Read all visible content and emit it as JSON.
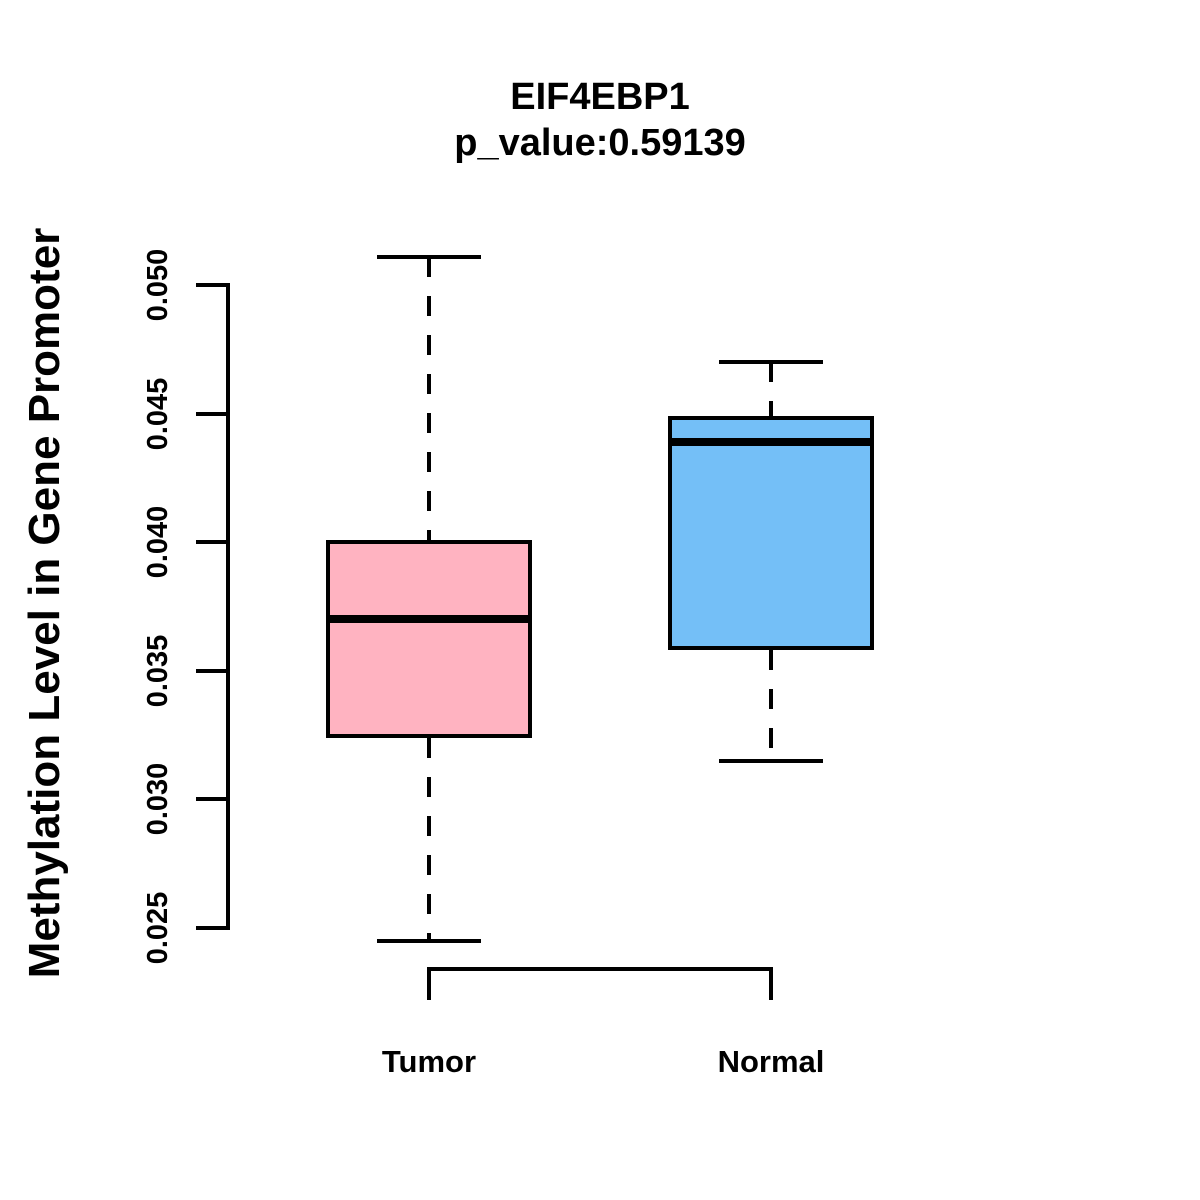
{
  "figure": {
    "title": "EIF4EBP1",
    "subtitle": "p_value:0.59139",
    "ylabel": "Methylation Level in Gene Promoter",
    "background_color": "#FFFFFF",
    "line_color": "#000000"
  },
  "chart_data": {
    "type": "boxplot",
    "title": "EIF4EBP1",
    "subtitle": "p_value:0.59139",
    "xlabel": "",
    "ylabel": "Methylation Level in Gene Promoter",
    "categories": [
      "Tumor",
      "Normal"
    ],
    "yticks": [
      0.025,
      0.03,
      0.035,
      0.04,
      0.045,
      0.05
    ],
    "ylim": [
      0.0245,
      0.0511
    ],
    "grid": false,
    "legend": "none",
    "series": [
      {
        "name": "Tumor",
        "fill_color": "#FFB3C1",
        "lower_whisker": 0.0245,
        "q1": 0.0324,
        "median": 0.037,
        "q3": 0.0401,
        "upper_whisker": 0.0511
      },
      {
        "name": "Normal",
        "fill_color": "#74BFF7",
        "lower_whisker": 0.0315,
        "q1": 0.0358,
        "median": 0.0439,
        "q3": 0.0449,
        "upper_whisker": 0.047
      }
    ]
  }
}
